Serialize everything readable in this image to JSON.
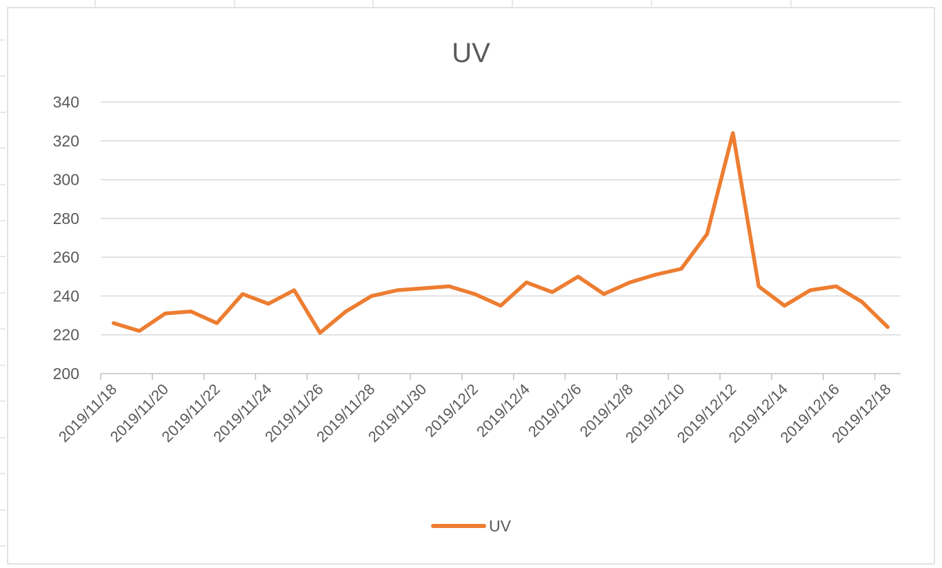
{
  "chart_data": {
    "type": "line",
    "title": "UV",
    "xlabel": "",
    "ylabel": "",
    "ylim": [
      200,
      340
    ],
    "yticks": [
      200,
      220,
      240,
      260,
      280,
      300,
      320,
      340
    ],
    "grid": true,
    "legend_position": "bottom",
    "x": [
      "2019/11/18",
      "2019/11/19",
      "2019/11/20",
      "2019/11/21",
      "2019/11/22",
      "2019/11/23",
      "2019/11/24",
      "2019/11/25",
      "2019/11/26",
      "2019/11/27",
      "2019/11/28",
      "2019/11/29",
      "2019/11/30",
      "2019/12/1",
      "2019/12/2",
      "2019/12/3",
      "2019/12/4",
      "2019/12/5",
      "2019/12/6",
      "2019/12/7",
      "2019/12/8",
      "2019/12/9",
      "2019/12/10",
      "2019/12/11",
      "2019/12/12",
      "2019/12/13",
      "2019/12/14",
      "2019/12/15",
      "2019/12/16",
      "2019/12/17",
      "2019/12/18"
    ],
    "x_tick_labels": [
      "2019/11/18",
      "2019/11/20",
      "2019/11/22",
      "2019/11/24",
      "2019/11/26",
      "2019/11/28",
      "2019/11/30",
      "2019/12/2",
      "2019/12/4",
      "2019/12/6",
      "2019/12/8",
      "2019/12/10",
      "2019/12/12",
      "2019/12/14",
      "2019/12/16",
      "2019/12/18"
    ],
    "series": [
      {
        "name": "UV",
        "color": "#ed7d31",
        "values": [
          226,
          222,
          231,
          232,
          226,
          241,
          236,
          243,
          221,
          232,
          240,
          243,
          244,
          245,
          241,
          235,
          247,
          242,
          250,
          241,
          247,
          251,
          254,
          272,
          324,
          245,
          235,
          243,
          245,
          237,
          224
        ]
      }
    ]
  }
}
